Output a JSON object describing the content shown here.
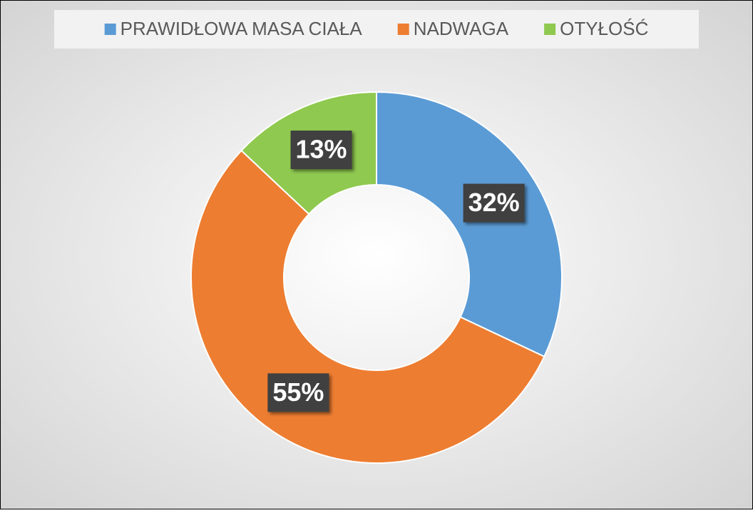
{
  "chart_data": {
    "type": "donut",
    "categories": [
      "PRAWIDŁOWA MASA CIAŁA",
      "NADWAGA",
      "OTYŁOŚĆ"
    ],
    "values": [
      32,
      55,
      13
    ],
    "value_labels": [
      "32%",
      "55%",
      "13%"
    ],
    "colors": [
      "#5b9bd5",
      "#ed7d31",
      "#8fc94f"
    ],
    "legend": "top"
  }
}
